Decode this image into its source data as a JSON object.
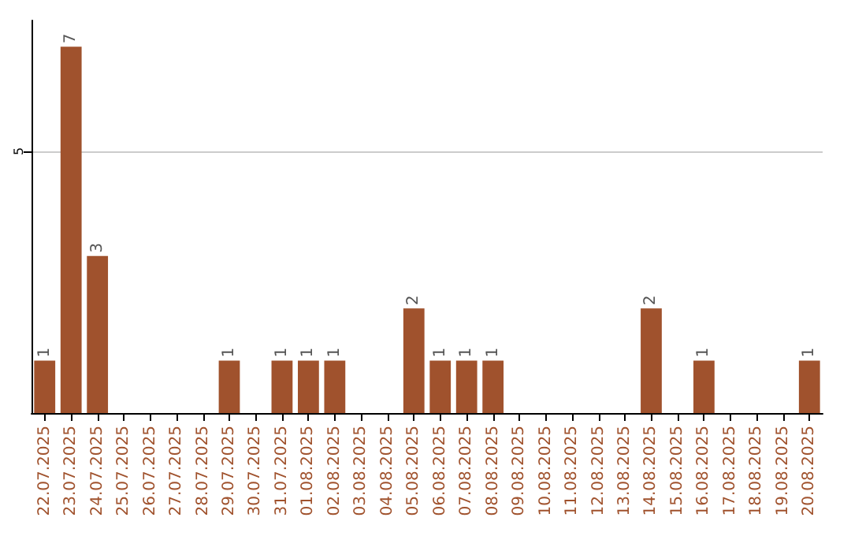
{
  "chart_data": {
    "type": "bar",
    "categories": [
      "22.07.2025",
      "23.07.2025",
      "24.07.2025",
      "25.07.2025",
      "26.07.2025",
      "27.07.2025",
      "28.07.2025",
      "29.07.2025",
      "30.07.2025",
      "31.07.2025",
      "01.08.2025",
      "02.08.2025",
      "03.08.2025",
      "04.08.2025",
      "05.08.2025",
      "06.08.2025",
      "07.08.2025",
      "08.08.2025",
      "09.08.2025",
      "10.08.2025",
      "11.08.2025",
      "12.08.2025",
      "13.08.2025",
      "14.08.2025",
      "15.08.2025",
      "16.08.2025",
      "17.08.2025",
      "18.08.2025",
      "19.08.2025",
      "20.08.2025"
    ],
    "values": [
      1,
      7,
      3,
      0,
      0,
      0,
      0,
      1,
      0,
      1,
      1,
      1,
      0,
      0,
      2,
      1,
      1,
      1,
      0,
      0,
      0,
      0,
      0,
      2,
      0,
      1,
      0,
      0,
      0,
      1
    ],
    "value_labels": [
      "1",
      "7",
      "3",
      null,
      null,
      null,
      null,
      "1",
      null,
      "1",
      "1",
      "1",
      null,
      null,
      "2",
      "1",
      "1",
      "1",
      null,
      null,
      null,
      null,
      null,
      "2",
      null,
      "1",
      null,
      null,
      null,
      "1"
    ],
    "color": "#a0522d",
    "ylim": [
      0,
      7.5
    ],
    "yticks": [
      5
    ],
    "grid": "y"
  }
}
